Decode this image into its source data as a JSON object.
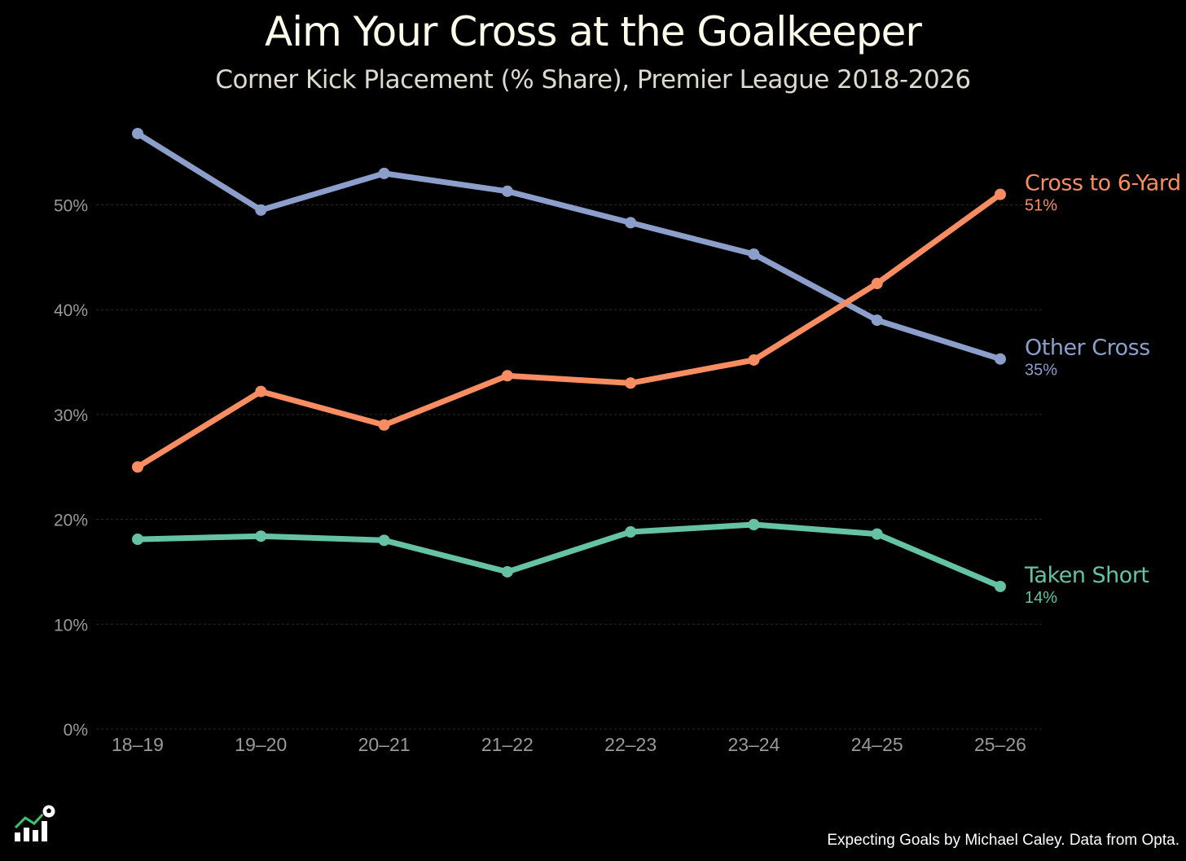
{
  "title": "Aim Your Cross at the Goalkeeper",
  "subtitle": "Corner Kick Placement (% Share), Premier League 2018-2026",
  "caption": "Expecting Goals by Michael Caley. Data from Opta.",
  "colors": {
    "background": "#000000",
    "grid": "#2a2a2a",
    "tick_text": "#9a9a9a",
    "logo": "#ffffff",
    "logo_accent": "#3cc36b"
  },
  "chart_data": {
    "type": "line",
    "title": "Aim Your Cross at the Goalkeeper",
    "subtitle": "Corner Kick Placement (% Share), Premier League 2018-2026",
    "xlabel": "",
    "ylabel": "",
    "categories": [
      "18–19",
      "19–20",
      "20–21",
      "21–22",
      "22–23",
      "23–24",
      "24–25",
      "25–26"
    ],
    "ylim": [
      0,
      57
    ],
    "yticks": [
      0,
      10,
      20,
      30,
      40,
      50
    ],
    "ytick_labels": [
      "0%",
      "10%",
      "20%",
      "30%",
      "40%",
      "50%"
    ],
    "grid": true,
    "legend": "direct labels at right end of each line",
    "series": [
      {
        "name": "Other Cross",
        "end_label": "35%",
        "color": "#8c9fcb",
        "values": [
          56.8,
          49.5,
          53.0,
          51.3,
          48.3,
          45.3,
          39.0,
          35.3
        ]
      },
      {
        "name": "Cross to 6-Yard",
        "end_label": "51%",
        "color": "#f98d62",
        "values": [
          25.0,
          32.2,
          29.0,
          33.7,
          33.0,
          35.2,
          42.5,
          51.0
        ]
      },
      {
        "name": "Taken Short",
        "end_label": "14%",
        "color": "#66c2a5",
        "values": [
          18.1,
          18.4,
          18.0,
          15.0,
          18.8,
          19.5,
          18.6,
          13.6
        ]
      }
    ]
  }
}
